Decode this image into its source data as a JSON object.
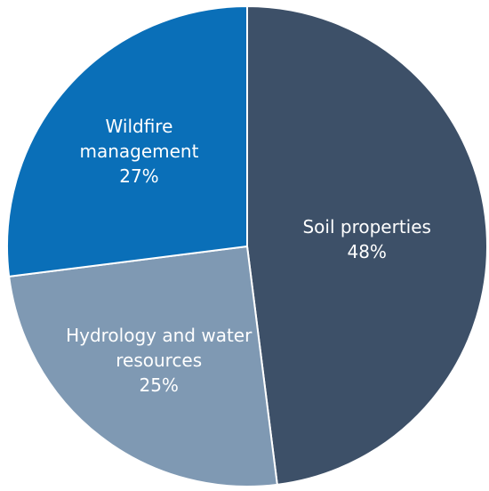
{
  "chart_data": {
    "type": "pie",
    "categories": [
      "Soil properties",
      "Hydrology and water resources",
      "Wildfire management"
    ],
    "values": [
      48,
      25,
      27
    ],
    "value_labels": [
      "48%",
      "25%",
      "27%"
    ],
    "colors": [
      "#3d5068",
      "#7f99b3",
      "#0a6fb8"
    ]
  }
}
